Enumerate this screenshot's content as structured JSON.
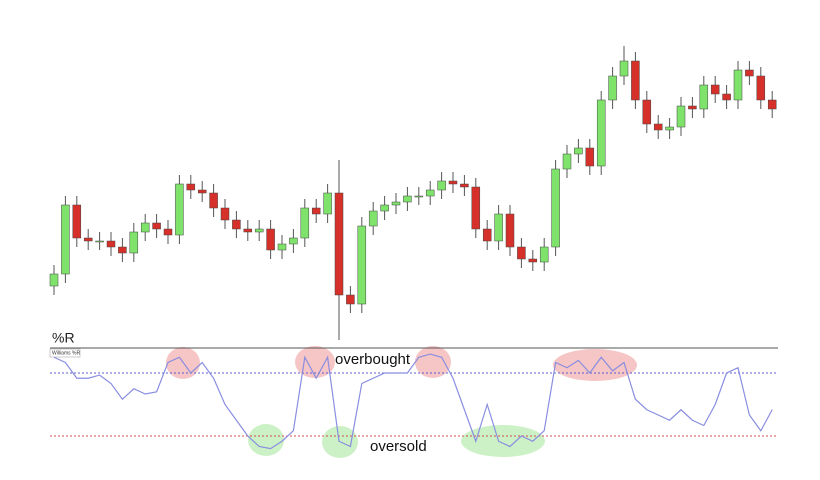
{
  "chart_data": [
    {
      "type": "candlestick",
      "up_color": "#7fe36b",
      "down_color": "#d6302a",
      "ylim": [
        0,
        100
      ],
      "open": [
        18,
        22,
        45,
        34,
        33,
        33,
        31,
        29,
        36,
        39,
        37,
        35,
        52,
        50,
        49,
        44,
        40,
        37,
        36,
        37,
        30,
        32,
        34,
        44,
        42,
        49,
        15,
        12,
        38,
        43,
        45,
        46,
        48,
        48,
        50,
        53,
        52,
        51,
        37,
        33,
        42,
        31,
        27,
        26,
        31,
        57,
        62,
        64,
        58,
        80,
        88,
        93,
        80,
        72,
        70,
        71,
        78,
        77,
        85,
        82,
        80,
        90,
        88,
        80
      ],
      "high": [
        25,
        48,
        48,
        37,
        36,
        36,
        34,
        39,
        42,
        42,
        40,
        55,
        55,
        53,
        52,
        47,
        43,
        40,
        40,
        40,
        35,
        37,
        47,
        47,
        52,
        60,
        18,
        41,
        46,
        48,
        49,
        51,
        51,
        53,
        56,
        56,
        55,
        54,
        40,
        45,
        45,
        34,
        30,
        34,
        60,
        65,
        67,
        67,
        83,
        91,
        98,
        96,
        83,
        75,
        74,
        81,
        81,
        88,
        88,
        85,
        93,
        93,
        91,
        83
      ],
      "low": [
        15,
        19,
        31,
        30,
        30,
        28,
        26,
        26,
        33,
        34,
        32,
        32,
        47,
        46,
        41,
        37,
        34,
        33,
        33,
        27,
        27,
        29,
        31,
        39,
        39,
        0,
        9,
        9,
        35,
        40,
        42,
        43,
        45,
        45,
        47,
        49,
        48,
        34,
        30,
        30,
        28,
        24,
        23,
        23,
        28,
        54,
        59,
        55,
        55,
        77,
        85,
        77,
        69,
        67,
        67,
        68,
        74,
        74,
        79,
        77,
        77,
        85,
        77,
        74
      ],
      "close": [
        22,
        45,
        34,
        33,
        33,
        31,
        29,
        36,
        39,
        37,
        35,
        52,
        50,
        49,
        44,
        40,
        37,
        36,
        37,
        30,
        32,
        34,
        44,
        42,
        49,
        15,
        12,
        38,
        43,
        45,
        46,
        48,
        48,
        50,
        53,
        52,
        51,
        37,
        33,
        42,
        31,
        27,
        26,
        31,
        57,
        62,
        64,
        58,
        80,
        88,
        93,
        80,
        72,
        70,
        71,
        78,
        77,
        85,
        82,
        80,
        90,
        88,
        80,
        77
      ]
    },
    {
      "type": "line",
      "title": "%R",
      "label": "Williams %R",
      "color": "#8a8ee0",
      "ylim": [
        -100,
        0
      ],
      "values": [
        -5,
        -10,
        -25,
        -25,
        -22,
        -30,
        -45,
        -35,
        -40,
        -38,
        -10,
        -5,
        -20,
        -10,
        -25,
        -50,
        -65,
        -80,
        -90,
        -92,
        -85,
        -75,
        -5,
        -25,
        -5,
        -85,
        -90,
        -30,
        -25,
        -20,
        -20,
        -20,
        -5,
        -2,
        -5,
        -25,
        -55,
        -85,
        -50,
        -85,
        -90,
        -80,
        -85,
        -75,
        -10,
        -15,
        -8,
        -20,
        -5,
        -18,
        -10,
        -45,
        -55,
        -60,
        -65,
        -55,
        -65,
        -70,
        -50,
        -20,
        -15,
        -60,
        -75,
        -55
      ],
      "levels": [
        {
          "label": "overbought",
          "value": -20,
          "color": "#5b5bd0"
        },
        {
          "label": "oversold",
          "value": -80,
          "color": "#d05050"
        }
      ]
    }
  ]
}
